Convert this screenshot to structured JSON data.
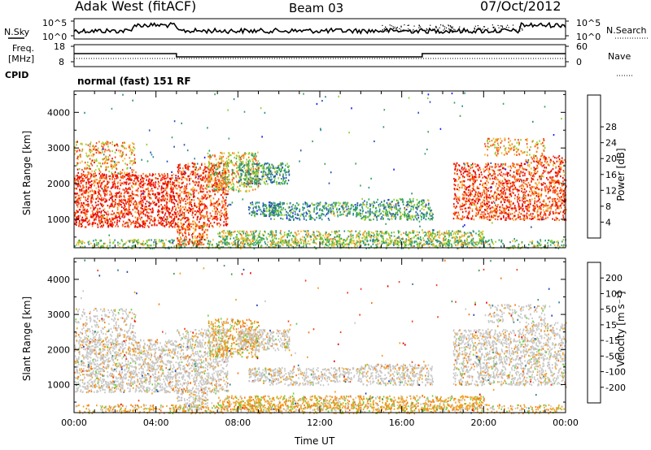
{
  "header": {
    "station": "Adak West (fitACF)",
    "beam": "Beam 03",
    "date": "07/Oct/2012"
  },
  "nsky_panel": {
    "left_label": "N.Sky",
    "right_label": "N.Search",
    "left_ticks": [
      "10^5",
      "10^0"
    ],
    "right_ticks": [
      "10^5",
      "10^0"
    ]
  },
  "freq_panel": {
    "left_label_line1": "Freq.",
    "left_label_line2": "[MHz]",
    "right_label": "Nave",
    "left_ticks": [
      "18",
      "8"
    ],
    "right_ticks": [
      "60",
      "0"
    ]
  },
  "cpid": {
    "label": "CPID",
    "value": "normal (fast) 151 RF"
  },
  "chart_data": [
    {
      "type": "heatmap",
      "name": "power",
      "ylabel": "Slant Range [km]",
      "ylim": [
        200,
        4600
      ],
      "yticks": [
        "1000",
        "2000",
        "3000",
        "4000"
      ],
      "colorbar_label": "Power [dB]",
      "colorbar_ticks": [
        "4",
        "8",
        "12",
        "16",
        "20",
        "24",
        "28"
      ],
      "colorbar_range": [
        0,
        32
      ],
      "colors": [
        "#1a1aff",
        "#2b4fb8",
        "#2d8c8c",
        "#33a65a",
        "#8cd22d",
        "#f5b92d",
        "#f57a14",
        "#ff3c14",
        "#e60000"
      ]
    },
    {
      "type": "heatmap",
      "name": "velocity",
      "ylabel": "Slant Range [km]",
      "ylim": [
        200,
        4600
      ],
      "yticks": [
        "1000",
        "2000",
        "3000",
        "4000"
      ],
      "colorbar_label": "Velocity [m s⁻¹]",
      "colorbar_ticks": [
        "200",
        "100",
        "50",
        "15",
        "-15",
        "-50",
        "-100",
        "-200"
      ],
      "colors": [
        "#2040c0",
        "#2e7d8f",
        "#3a9a5a",
        "#6ccf3a",
        "#c8c8c8",
        "#f0a020",
        "#f57814",
        "#f04020",
        "#e60000"
      ]
    }
  ],
  "xaxis": {
    "label": "Time UT",
    "ticks": [
      "00:00",
      "04:00",
      "08:00",
      "12:00",
      "16:00",
      "20:00",
      "00:00"
    ]
  }
}
